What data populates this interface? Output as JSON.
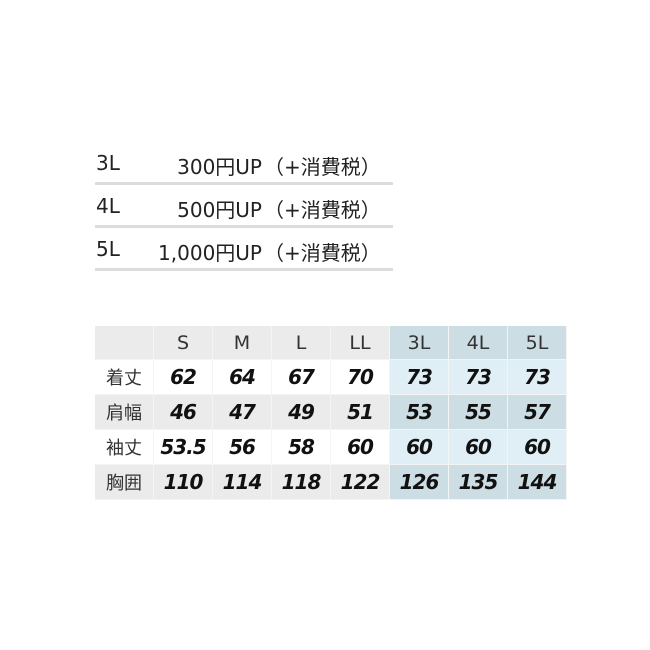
{
  "price_list": [
    {
      "size": "3L",
      "amount": "300円UP",
      "tax": "（+消費税）"
    },
    {
      "size": "4L",
      "amount": "500円UP",
      "tax": "（+消費税）"
    },
    {
      "size": "5L",
      "amount": "1,000円UP",
      "tax": "（+消費税）"
    }
  ],
  "size_table": {
    "headers": [
      "",
      "S",
      "M",
      "L",
      "LL",
      "3L",
      "4L",
      "5L"
    ],
    "rows": [
      {
        "label": "着丈",
        "values": [
          "62",
          "64",
          "67",
          "70",
          "73",
          "73",
          "73"
        ]
      },
      {
        "label": "肩幅",
        "values": [
          "46",
          "47",
          "49",
          "51",
          "53",
          "55",
          "57"
        ]
      },
      {
        "label": "袖丈",
        "values": [
          "53.5",
          "56",
          "58",
          "60",
          "60",
          "60",
          "60"
        ]
      },
      {
        "label": "胸囲",
        "values": [
          "110",
          "114",
          "118",
          "122",
          "126",
          "135",
          "144"
        ]
      }
    ]
  },
  "colors": {
    "gray": "#ebebeb",
    "light_blue": "#dfeff5",
    "blue_gray": "#cddde4"
  }
}
